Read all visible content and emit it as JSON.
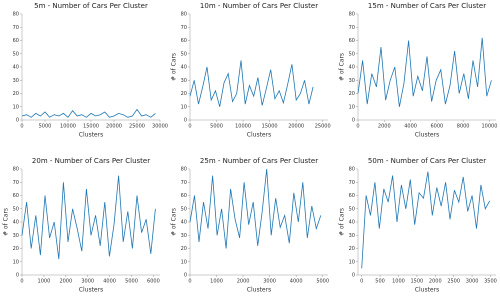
{
  "chart_data": [
    {
      "type": "line",
      "title": "5m - Number of Cars Per Cluster",
      "x_label": "Clusters",
      "color": "#1f77b4",
      "x": [
        0,
        1000,
        2000,
        3000,
        4000,
        5000,
        6000,
        7000,
        8000,
        9000,
        10000,
        11000,
        12000,
        13000,
        14000,
        15000,
        16000,
        17000,
        18000,
        19000,
        20000,
        21000,
        22000,
        23000,
        24000,
        25000,
        26000,
        27000,
        28000,
        29000
      ],
      "values": [
        3,
        4,
        2,
        5,
        3,
        6,
        2,
        4,
        3,
        5,
        2,
        7,
        3,
        4,
        2,
        5,
        3,
        4,
        6,
        2,
        3,
        5,
        4,
        2,
        3,
        8,
        3,
        4,
        2,
        5
      ],
      "xlim": [
        0,
        30000
      ],
      "xticks": [
        0,
        5000,
        10000,
        15000,
        20000,
        25000,
        30000
      ],
      "ylim": [
        0,
        80
      ],
      "yticks": [
        0,
        10,
        20,
        30,
        40,
        50,
        60,
        70,
        80
      ]
    },
    {
      "type": "line",
      "title": "10m - Number of Cars Per Cluster",
      "x_label": "Clusters",
      "y_label": "# of Cars",
      "color": "#1f77b4",
      "x": [
        0,
        800,
        1600,
        2400,
        3200,
        4000,
        4800,
        5600,
        6400,
        7200,
        8000,
        8800,
        9600,
        10400,
        11200,
        12000,
        12800,
        13600,
        14400,
        15200,
        16000,
        16800,
        17600,
        18400,
        19200,
        20000,
        20800,
        21600,
        22400,
        23200
      ],
      "values": [
        18,
        30,
        12,
        25,
        40,
        15,
        22,
        10,
        28,
        35,
        14,
        20,
        45,
        12,
        26,
        18,
        32,
        11,
        24,
        38,
        16,
        22,
        13,
        27,
        42,
        15,
        20,
        30,
        12,
        25
      ],
      "xlim": [
        0,
        26000
      ],
      "xticks": [
        0,
        5000,
        10000,
        15000,
        20000,
        25000
      ],
      "ylim": [
        0,
        80
      ],
      "yticks": [
        0,
        10,
        20,
        30,
        40,
        50,
        60,
        70,
        80
      ]
    },
    {
      "type": "line",
      "title": "15m - Number of Cars Per Cluster",
      "x_label": "Clusters",
      "y_label": "# of Cars",
      "color": "#1f77b4",
      "x": [
        0,
        350,
        700,
        1050,
        1400,
        1750,
        2100,
        2450,
        2800,
        3150,
        3500,
        3850,
        4200,
        4550,
        4900,
        5250,
        5600,
        5950,
        6300,
        6650,
        7000,
        7350,
        7700,
        8050,
        8400,
        8750,
        9100,
        9450,
        9800,
        10150
      ],
      "values": [
        20,
        45,
        12,
        35,
        25,
        55,
        15,
        30,
        40,
        10,
        28,
        60,
        18,
        33,
        22,
        48,
        14,
        30,
        38,
        12,
        26,
        52,
        20,
        35,
        16,
        45,
        25,
        62,
        18,
        30
      ],
      "xlim": [
        0,
        10500
      ],
      "xticks": [
        0,
        2000,
        4000,
        6000,
        8000,
        10000
      ],
      "ylim": [
        0,
        80
      ],
      "yticks": [
        0,
        10,
        20,
        30,
        40,
        50,
        60,
        70,
        80
      ]
    },
    {
      "type": "line",
      "title": "20m - Number of Cars Per Cluster",
      "x_label": "Clusters",
      "y_label": "# of Cars",
      "color": "#1f77b4",
      "x": [
        0,
        210,
        420,
        630,
        840,
        1050,
        1260,
        1470,
        1680,
        1890,
        2100,
        2310,
        2520,
        2730,
        2940,
        3150,
        3360,
        3570,
        3780,
        3990,
        4200,
        4410,
        4620,
        4830,
        5040,
        5250,
        5460,
        5670,
        5880,
        6090
      ],
      "values": [
        30,
        55,
        20,
        45,
        15,
        60,
        28,
        40,
        12,
        70,
        25,
        50,
        35,
        18,
        65,
        30,
        45,
        22,
        55,
        14,
        38,
        75,
        25,
        48,
        20,
        60,
        32,
        42,
        16,
        50
      ],
      "xlim": [
        0,
        6300
      ],
      "xticks": [
        0,
        1000,
        2000,
        3000,
        4000,
        5000,
        6000
      ],
      "ylim": [
        0,
        80
      ],
      "yticks": [
        0,
        10,
        20,
        30,
        40,
        50,
        60,
        70,
        80
      ]
    },
    {
      "type": "line",
      "title": "25m - Number of Cars Per Cluster",
      "x_label": "Clusters",
      "y_label": "# of Cars",
      "color": "#1f77b4",
      "x": [
        0,
        170,
        340,
        510,
        680,
        850,
        1020,
        1190,
        1360,
        1530,
        1700,
        1870,
        2040,
        2210,
        2380,
        2550,
        2720,
        2890,
        3060,
        3230,
        3400,
        3570,
        3740,
        3910,
        4080,
        4250,
        4420,
        4590,
        4760,
        4930
      ],
      "values": [
        40,
        60,
        25,
        55,
        35,
        75,
        30,
        50,
        20,
        65,
        42,
        28,
        70,
        38,
        55,
        22,
        48,
        80,
        30,
        58,
        36,
        45,
        24,
        62,
        40,
        70,
        28,
        52,
        35,
        45
      ],
      "xlim": [
        0,
        5200
      ],
      "xticks": [
        0,
        1000,
        2000,
        3000,
        4000,
        5000
      ],
      "ylim": [
        0,
        80
      ],
      "yticks": [
        0,
        10,
        20,
        30,
        40,
        50,
        60,
        70,
        80
      ]
    },
    {
      "type": "line",
      "title": "50m - Number of Cars Per Cluster",
      "x_label": "Clusters",
      "y_label": "# of Cars",
      "color": "#1f77b4",
      "x": [
        0,
        120,
        240,
        360,
        480,
        600,
        720,
        840,
        960,
        1080,
        1200,
        1320,
        1440,
        1560,
        1680,
        1800,
        1920,
        2040,
        2160,
        2280,
        2400,
        2520,
        2640,
        2760,
        2880,
        3000,
        3120,
        3240,
        3360,
        3480
      ],
      "values": [
        5,
        60,
        45,
        70,
        35,
        65,
        55,
        75,
        40,
        68,
        50,
        72,
        38,
        62,
        58,
        78,
        45,
        66,
        52,
        70,
        42,
        64,
        55,
        74,
        48,
        60,
        35,
        68,
        50,
        56
      ],
      "xlim": [
        -100,
        3650
      ],
      "xticks": [
        0,
        500,
        1000,
        1500,
        2000,
        2500,
        3000,
        3500
      ],
      "ylim": [
        0,
        80
      ],
      "yticks": [
        0,
        10,
        20,
        30,
        40,
        50,
        60,
        70,
        80
      ]
    }
  ]
}
